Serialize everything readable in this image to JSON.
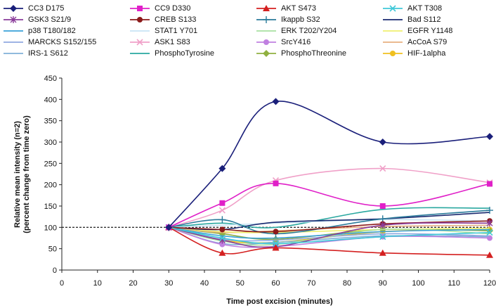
{
  "chart_data": {
    "type": "line",
    "xlabel": "Time post excision (minutes)",
    "ylabel_lines": [
      "Relative mean intensity (n=2)",
      "(percent change from time zero)"
    ],
    "xlim": [
      0,
      120
    ],
    "ylim": [
      0,
      450
    ],
    "xticks": [
      0,
      10,
      20,
      30,
      40,
      50,
      60,
      70,
      80,
      90,
      100,
      110,
      120
    ],
    "yticks": [
      0,
      50,
      100,
      150,
      200,
      250,
      300,
      350,
      400,
      450
    ],
    "reference_line": 100,
    "legend_position": "top",
    "series": [
      {
        "name": "CC3 D175",
        "color": "#1a1f7a",
        "marker": "diamond",
        "x": [
          30,
          45,
          60,
          90,
          120
        ],
        "y": [
          100,
          238,
          395,
          300,
          313
        ]
      },
      {
        "name": "CC9 D330",
        "color": "#e020c8",
        "marker": "square",
        "x": [
          30,
          45,
          60,
          90,
          120
        ],
        "y": [
          100,
          157,
          203,
          150,
          202
        ]
      },
      {
        "name": "AKT S473",
        "color": "#d42020",
        "marker": "triangle",
        "x": [
          30,
          45,
          60,
          90,
          120
        ],
        "y": [
          100,
          40,
          52,
          40,
          35
        ]
      },
      {
        "name": "AKT T308",
        "color": "#40c8d8",
        "marker": "x",
        "x": [
          30,
          45,
          60,
          90,
          120
        ],
        "y": [
          100,
          75,
          62,
          78,
          88
        ]
      },
      {
        "name": "GSK3 S21/9",
        "color": "#8a3c9a",
        "marker": "star",
        "x": [
          30,
          45,
          60,
          90,
          120
        ],
        "y": [
          100,
          70,
          55,
          105,
          110
        ]
      },
      {
        "name": "CREB S133",
        "color": "#8b1a1a",
        "marker": "circle",
        "x": [
          30,
          45,
          60,
          90,
          120
        ],
        "y": [
          100,
          95,
          90,
          108,
          115
        ]
      },
      {
        "name": "Ikappb S32",
        "color": "#2a7a9a",
        "marker": "plus",
        "x": [
          30,
          45,
          60,
          90,
          120
        ],
        "y": [
          100,
          118,
          85,
          120,
          140
        ]
      },
      {
        "name": "Bad S112",
        "color": "#1a2a70",
        "marker": "none",
        "x": [
          30,
          45,
          60,
          90,
          120
        ],
        "y": [
          100,
          95,
          112,
          120,
          135
        ]
      },
      {
        "name": "p38 T180/182",
        "color": "#3aa0d8",
        "marker": "none",
        "x": [
          30,
          45,
          60,
          90,
          120
        ],
        "y": [
          100,
          80,
          75,
          90,
          95
        ]
      },
      {
        "name": "STAT1 Y701",
        "color": "#c8e4f4",
        "marker": "none",
        "x": [
          30,
          45,
          60,
          90,
          120
        ],
        "y": [
          100,
          105,
          110,
          118,
          115
        ]
      },
      {
        "name": "ERK T202/Y204",
        "color": "#a8e0a0",
        "marker": "none",
        "x": [
          30,
          45,
          60,
          90,
          120
        ],
        "y": [
          100,
          68,
          60,
          95,
          85
        ]
      },
      {
        "name": "EGFR Y1148",
        "color": "#f0f070",
        "marker": "none",
        "x": [
          30,
          45,
          60,
          90,
          120
        ],
        "y": [
          100,
          90,
          88,
          95,
          98
        ]
      },
      {
        "name": "MARCKS S152/155",
        "color": "#90a8e0",
        "marker": "none",
        "x": [
          30,
          45,
          60,
          90,
          120
        ],
        "y": [
          100,
          72,
          70,
          85,
          80
        ]
      },
      {
        "name": "ASK1 S83",
        "color": "#f0a0c8",
        "marker": "x",
        "x": [
          30,
          45,
          60,
          90,
          120
        ],
        "y": [
          100,
          140,
          210,
          238,
          205
        ]
      },
      {
        "name": "SrcY416",
        "color": "#c080e0",
        "marker": "circle",
        "x": [
          30,
          45,
          60,
          90,
          120
        ],
        "y": [
          100,
          60,
          55,
          78,
          75
        ]
      },
      {
        "name": "AcCoA S79",
        "color": "#e8b080",
        "marker": "none",
        "x": [
          30,
          45,
          60,
          90,
          120
        ],
        "y": [
          100,
          88,
          92,
          102,
          105
        ]
      },
      {
        "name": "IRS-1 S612",
        "color": "#80b0d8",
        "marker": "none",
        "x": [
          30,
          45,
          60,
          90,
          120
        ],
        "y": [
          100,
          62,
          65,
          80,
          78
        ]
      },
      {
        "name": "PhosphoTyrosine",
        "color": "#2aa8a0",
        "marker": "none",
        "x": [
          30,
          45,
          60,
          90,
          120
        ],
        "y": [
          100,
          110,
          100,
          142,
          145
        ]
      },
      {
        "name": "PhosphoThreonine",
        "color": "#90b040",
        "marker": "diamond",
        "x": [
          30,
          45,
          60,
          90,
          120
        ],
        "y": [
          100,
          85,
          72,
          95,
          92
        ]
      },
      {
        "name": "HIF-1alpha",
        "color": "#f0c020",
        "marker": "circle",
        "x": [
          30,
          45,
          60,
          90,
          120
        ],
        "y": [
          100,
          70,
          65,
          90,
          95
        ]
      }
    ]
  }
}
